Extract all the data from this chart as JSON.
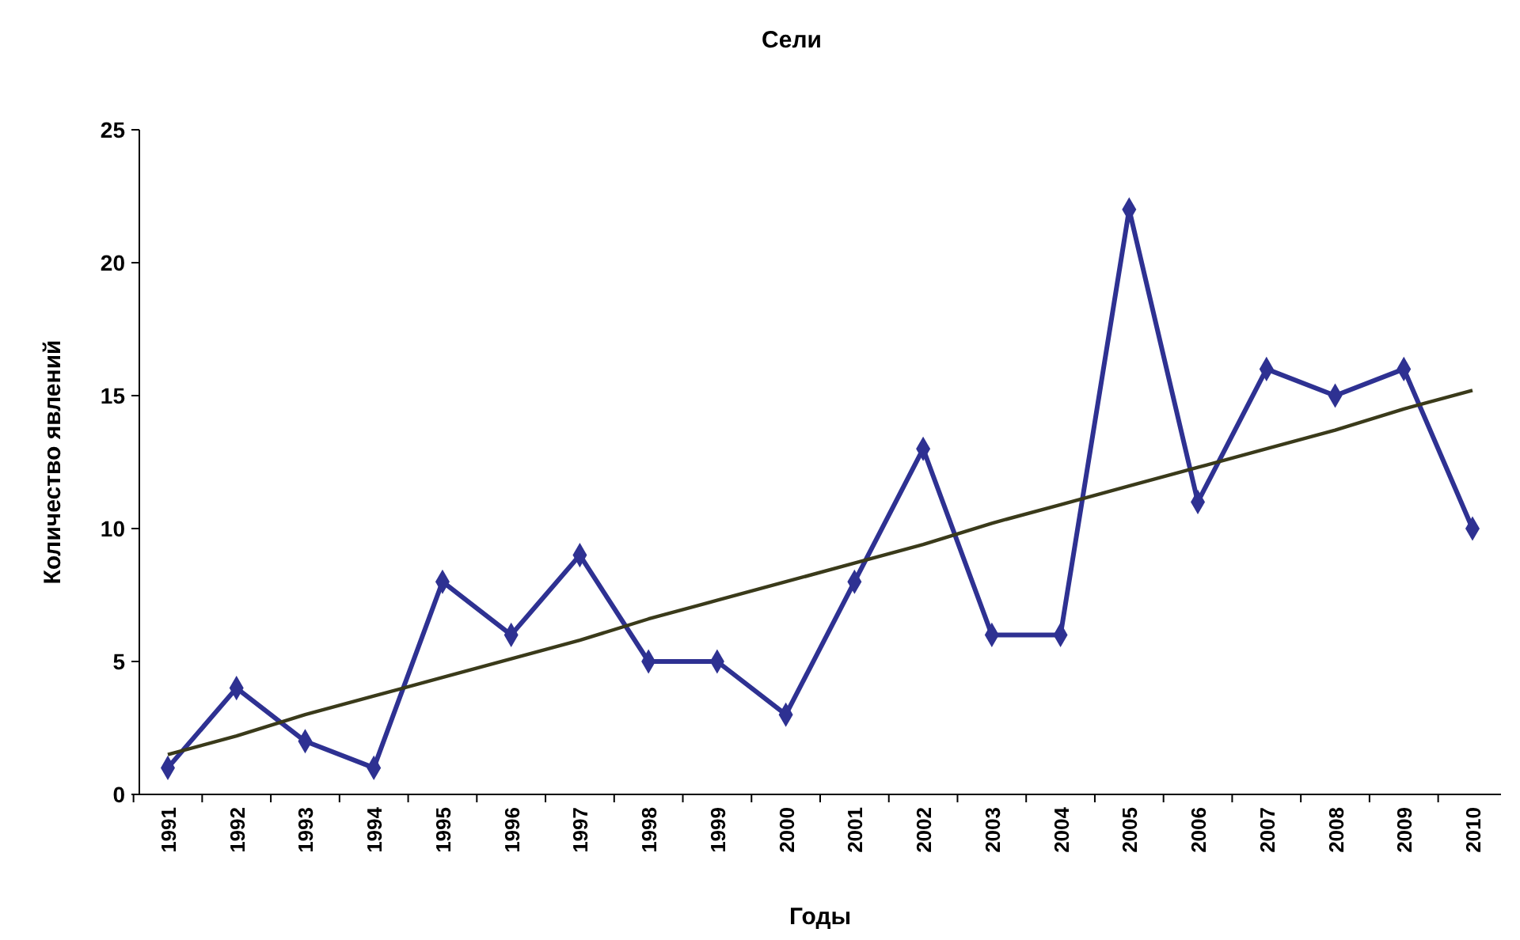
{
  "chart_data": {
    "type": "line",
    "title": "Сели",
    "xlabel": "Годы",
    "ylabel": "Количество явлений",
    "categories": [
      "1991",
      "1992",
      "1993",
      "1994",
      "1995",
      "1996",
      "1997",
      "1998",
      "1999",
      "2000",
      "2001",
      "2002",
      "2003",
      "2004",
      "2005",
      "2006",
      "2007",
      "2008",
      "2009",
      "2010"
    ],
    "series": [
      {
        "color": "#2e3192",
        "marker": "diamond",
        "values": [
          1,
          4,
          2,
          1,
          8,
          6,
          9,
          5,
          5,
          3,
          8,
          13,
          6,
          6,
          22,
          11,
          16,
          15,
          16,
          10
        ]
      },
      {
        "type": "line",
        "color": "#3a3a1a",
        "marker": "none",
        "values": [
          1.5,
          2.2,
          3.0,
          3.7,
          4.4,
          5.1,
          5.8,
          6.6,
          7.3,
          8.0,
          8.7,
          9.4,
          10.2,
          10.9,
          11.6,
          12.3,
          13.0,
          13.7,
          14.5,
          15.2
        ]
      }
    ],
    "ylim": [
      0,
      25
    ],
    "yticks": [
      0,
      5,
      10,
      15,
      20,
      25
    ],
    "grid": false
  }
}
